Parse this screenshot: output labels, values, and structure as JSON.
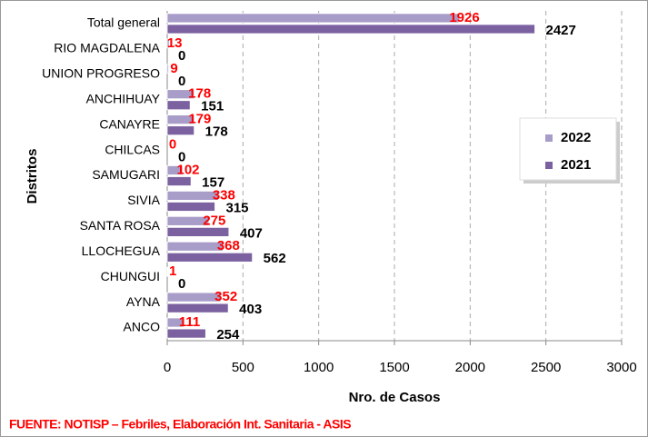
{
  "chart_data": {
    "type": "bar",
    "orientation": "horizontal",
    "x_label": "Nro. de Casos",
    "y_label": "Distritos",
    "source": "FUENTE:  NOTISP – Febriles, Elaboración Int. Sanitaria - ASIS",
    "categories": [
      "Total general",
      "RIO MAGDALENA",
      "UNION PROGRESO",
      "ANCHIHUAY",
      "CANAYRE",
      "CHILCAS",
      "SAMUGARI",
      "SIVIA",
      "SANTA ROSA",
      "LLOCHEGUA",
      "CHUNGUI",
      "AYNA",
      "ANCO"
    ],
    "series": [
      {
        "name": "2022",
        "color": "#a89cc8",
        "label_color": "#ff0000",
        "values": [
          1926,
          13,
          9,
          178,
          179,
          0,
          102,
          338,
          275,
          368,
          1,
          352,
          111
        ]
      },
      {
        "name": "2021",
        "color": "#7b61a0",
        "label_color": "#000000",
        "values": [
          2427,
          0,
          0,
          151,
          178,
          0,
          157,
          315,
          407,
          562,
          0,
          403,
          254
        ]
      }
    ],
    "xlim": [
      0,
      3000
    ],
    "xticks": [
      0,
      500,
      1000,
      1500,
      2000,
      2500,
      3000
    ],
    "grid": true,
    "legend": "right"
  }
}
